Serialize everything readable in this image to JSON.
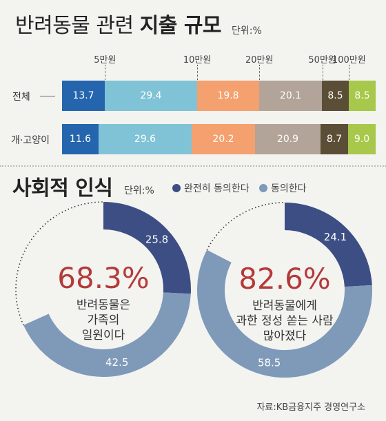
{
  "spending": {
    "title_light": "반려동물 관련",
    "title_bold": "지출 규모",
    "unit": "단위:%",
    "ticks": [
      "5만원",
      "10만원",
      "20만원",
      "50만원",
      "100만원"
    ],
    "rows": [
      {
        "label": "전체",
        "values": [
          "13.7",
          "29.4",
          "19.8",
          "20.1",
          "8.5",
          "8.5"
        ]
      },
      {
        "label": "개·고양이",
        "values": [
          "11.6",
          "29.6",
          "20.2",
          "20.9",
          "8.7",
          "9.0"
        ]
      }
    ],
    "colors": [
      "#2565ae",
      "#80c3d6",
      "#f4a06f",
      "#b2a498",
      "#5b4e37",
      "#a7c84a"
    ]
  },
  "perception": {
    "title": "사회적 인식",
    "unit": "단위:%",
    "legend": [
      {
        "label": "완전히 동의한다",
        "color": "#3c4e83"
      },
      {
        "label": "동의한다",
        "color": "#7f99b9"
      }
    ],
    "donuts": [
      {
        "percent": "68.3%",
        "caption": [
          "반려동물은",
          "가족의",
          "일원이다"
        ],
        "strongly_agree": "25.8",
        "agree": "42.5"
      },
      {
        "percent": "82.6%",
        "caption": [
          "반려동물에게",
          "과한 정성 쏟는 사람",
          "많아졌다"
        ],
        "strongly_agree": "24.1",
        "agree": "58.5"
      }
    ]
  },
  "source": "자료:KB금융지주 경영연구소",
  "chart_data": [
    {
      "type": "bar",
      "stacked": true,
      "orientation": "horizontal",
      "title": "반려동물 관련 지출 규모",
      "unit": "%",
      "categories": [
        "전체",
        "개·고양이"
      ],
      "boundary_labels": [
        "5만원",
        "10만원",
        "20만원",
        "50만원",
        "100만원"
      ],
      "series": [
        {
          "values": [
            13.7,
            11.6
          ],
          "color": "#2565ae"
        },
        {
          "values": [
            29.4,
            29.6
          ],
          "color": "#80c3d6"
        },
        {
          "values": [
            19.8,
            20.2
          ],
          "color": "#f4a06f"
        },
        {
          "values": [
            20.1,
            20.9
          ],
          "color": "#b2a498"
        },
        {
          "values": [
            8.5,
            8.7
          ],
          "color": "#5b4e37"
        },
        {
          "values": [
            8.5,
            9.0
          ],
          "color": "#a7c84a"
        }
      ]
    },
    {
      "type": "pie",
      "donut": true,
      "title": "사회적 인식",
      "unit": "%",
      "charts": [
        {
          "center_label": "68.3%",
          "caption": "반려동물은 가족의 일원이다",
          "slices": [
            {
              "name": "완전히 동의한다",
              "value": 25.8
            },
            {
              "name": "동의한다",
              "value": 42.5
            }
          ]
        },
        {
          "center_label": "82.6%",
          "caption": "반려동물에게 과한 정성 쏟는 사람 많아졌다",
          "slices": [
            {
              "name": "완전히 동의한다",
              "value": 24.1
            },
            {
              "name": "동의한다",
              "value": 58.5
            }
          ]
        }
      ]
    }
  ]
}
